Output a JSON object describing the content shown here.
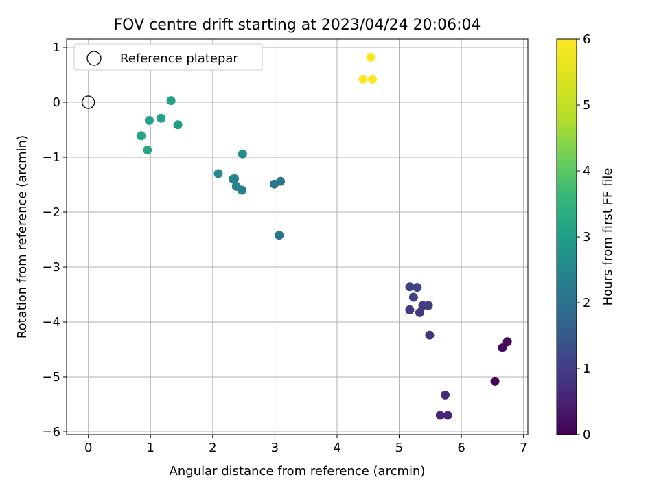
{
  "chart_data": {
    "type": "scatter",
    "title": "FOV centre drift starting at 2023/04/24 20:06:04",
    "xlabel": "Angular distance from reference (arcmin)",
    "ylabel": "Rotation from reference (arcmin)",
    "xlim": [
      -0.35,
      7.07
    ],
    "ylim": [
      -6.05,
      1.15
    ],
    "xticks": [
      0,
      1,
      2,
      3,
      4,
      5,
      6,
      7
    ],
    "yticks": [
      1,
      0,
      -1,
      -2,
      -3,
      -4,
      -5,
      -6
    ],
    "xtick_labels": [
      "0",
      "1",
      "2",
      "3",
      "4",
      "5",
      "6",
      "7"
    ],
    "ytick_labels": [
      "1",
      "0",
      "−1",
      "−2",
      "−3",
      "−4",
      "−5",
      "−6"
    ],
    "grid": true,
    "legend": {
      "placement": "top-left",
      "entries": [
        "Reference platepar"
      ]
    },
    "reference": {
      "label": "Reference platepar",
      "x": 0,
      "y": 0
    },
    "colorbar": {
      "label": "Hours from first FF file",
      "range": [
        0,
        6
      ],
      "ticks": [
        0,
        1,
        2,
        3,
        4,
        5,
        6
      ],
      "tick_labels": [
        "0",
        "1",
        "2",
        "3",
        "4",
        "5",
        "6"
      ],
      "colormap": "viridis"
    },
    "points": [
      {
        "x": 6.54,
        "y": -5.08,
        "hours": 0.05
      },
      {
        "x": 6.66,
        "y": -4.47,
        "hours": 0.1
      },
      {
        "x": 6.74,
        "y": -4.36,
        "hours": 0.15
      },
      {
        "x": 5.66,
        "y": -5.7,
        "hours": 0.55
      },
      {
        "x": 5.78,
        "y": -5.7,
        "hours": 0.6
      },
      {
        "x": 5.74,
        "y": -5.33,
        "hours": 0.65
      },
      {
        "x": 5.49,
        "y": -4.24,
        "hours": 0.8
      },
      {
        "x": 5.17,
        "y": -3.78,
        "hours": 0.85
      },
      {
        "x": 5.33,
        "y": -3.83,
        "hours": 0.9
      },
      {
        "x": 5.38,
        "y": -3.7,
        "hours": 0.95
      },
      {
        "x": 5.47,
        "y": -3.7,
        "hours": 1.0
      },
      {
        "x": 5.23,
        "y": -3.55,
        "hours": 1.05
      },
      {
        "x": 5.17,
        "y": -3.36,
        "hours": 1.05
      },
      {
        "x": 5.29,
        "y": -3.37,
        "hours": 1.1
      },
      {
        "x": 3.07,
        "y": -2.42,
        "hours": 2.05
      },
      {
        "x": 2.99,
        "y": -1.49,
        "hours": 2.1
      },
      {
        "x": 3.09,
        "y": -1.44,
        "hours": 2.15
      },
      {
        "x": 2.47,
        "y": -1.6,
        "hours": 2.3
      },
      {
        "x": 2.38,
        "y": -1.53,
        "hours": 2.35
      },
      {
        "x": 2.33,
        "y": -1.4,
        "hours": 2.4
      },
      {
        "x": 2.35,
        "y": -1.39,
        "hours": 2.45
      },
      {
        "x": 2.09,
        "y": -1.3,
        "hours": 2.55
      },
      {
        "x": 2.48,
        "y": -0.94,
        "hours": 2.65
      },
      {
        "x": 1.44,
        "y": -0.41,
        "hours": 3.0
      },
      {
        "x": 1.33,
        "y": 0.03,
        "hours": 3.05
      },
      {
        "x": 1.17,
        "y": -0.29,
        "hours": 3.1
      },
      {
        "x": 0.98,
        "y": -0.33,
        "hours": 3.15
      },
      {
        "x": 0.85,
        "y": -0.61,
        "hours": 3.2
      },
      {
        "x": 0.95,
        "y": -0.87,
        "hours": 3.2
      },
      {
        "x": 4.54,
        "y": 0.82,
        "hours": 5.95
      },
      {
        "x": 4.42,
        "y": 0.42,
        "hours": 6.0
      },
      {
        "x": 4.57,
        "y": 0.42,
        "hours": 6.0
      }
    ]
  }
}
